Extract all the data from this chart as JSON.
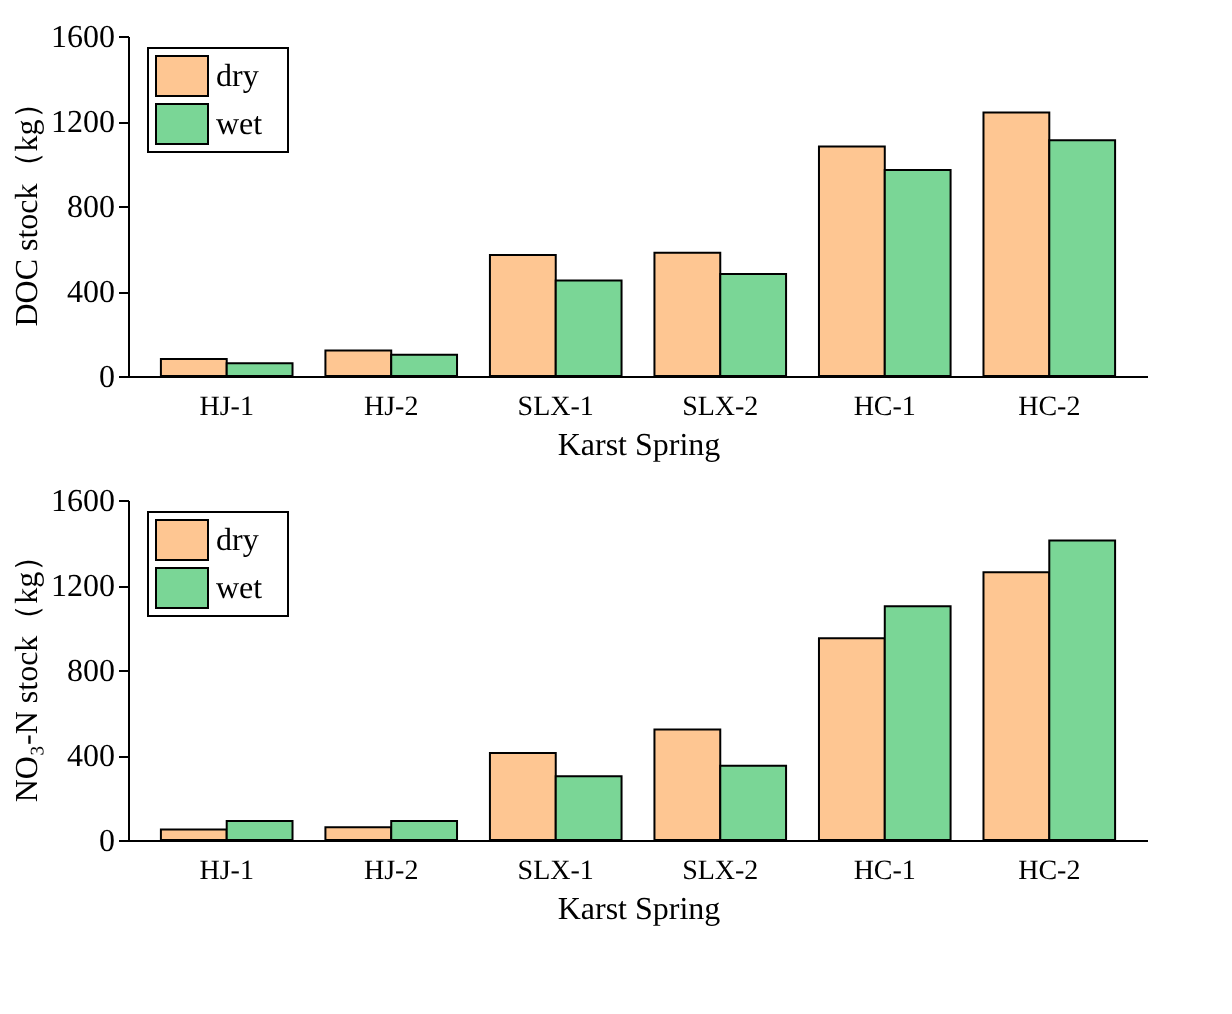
{
  "chart_data": [
    {
      "type": "bar",
      "categories": [
        "HJ-1",
        "HJ-2",
        "SLX-1",
        "SLX-2",
        "HC-1",
        "HC-2"
      ],
      "xlabel": "Karst Spring",
      "ylabel": "DOC stock（kg）",
      "ylim": [
        0,
        1600
      ],
      "yticks": [
        0,
        400,
        800,
        1200,
        1600
      ],
      "grid": false,
      "legend": "top left",
      "series": [
        {
          "name": "dry",
          "color": "#fec692",
          "values": [
            80,
            120,
            570,
            580,
            1080,
            1240
          ]
        },
        {
          "name": "wet",
          "color": "#7ad696",
          "values": [
            60,
            100,
            450,
            480,
            970,
            1110
          ]
        }
      ]
    },
    {
      "type": "bar",
      "categories": [
        "HJ-1",
        "HJ-2",
        "SLX-1",
        "SLX-2",
        "HC-1",
        "HC-2"
      ],
      "xlabel": "Karst Spring",
      "ylabel": "NO₃-N stock（kg）",
      "ylim": [
        0,
        1600
      ],
      "yticks": [
        0,
        400,
        800,
        1200,
        1600
      ],
      "grid": false,
      "legend": "top left",
      "series": [
        {
          "name": "dry",
          "color": "#fec692",
          "values": [
            50,
            60,
            410,
            520,
            950,
            1260
          ]
        },
        {
          "name": "wet",
          "color": "#7ad696",
          "values": [
            90,
            90,
            300,
            350,
            1100,
            1410
          ]
        }
      ]
    }
  ]
}
